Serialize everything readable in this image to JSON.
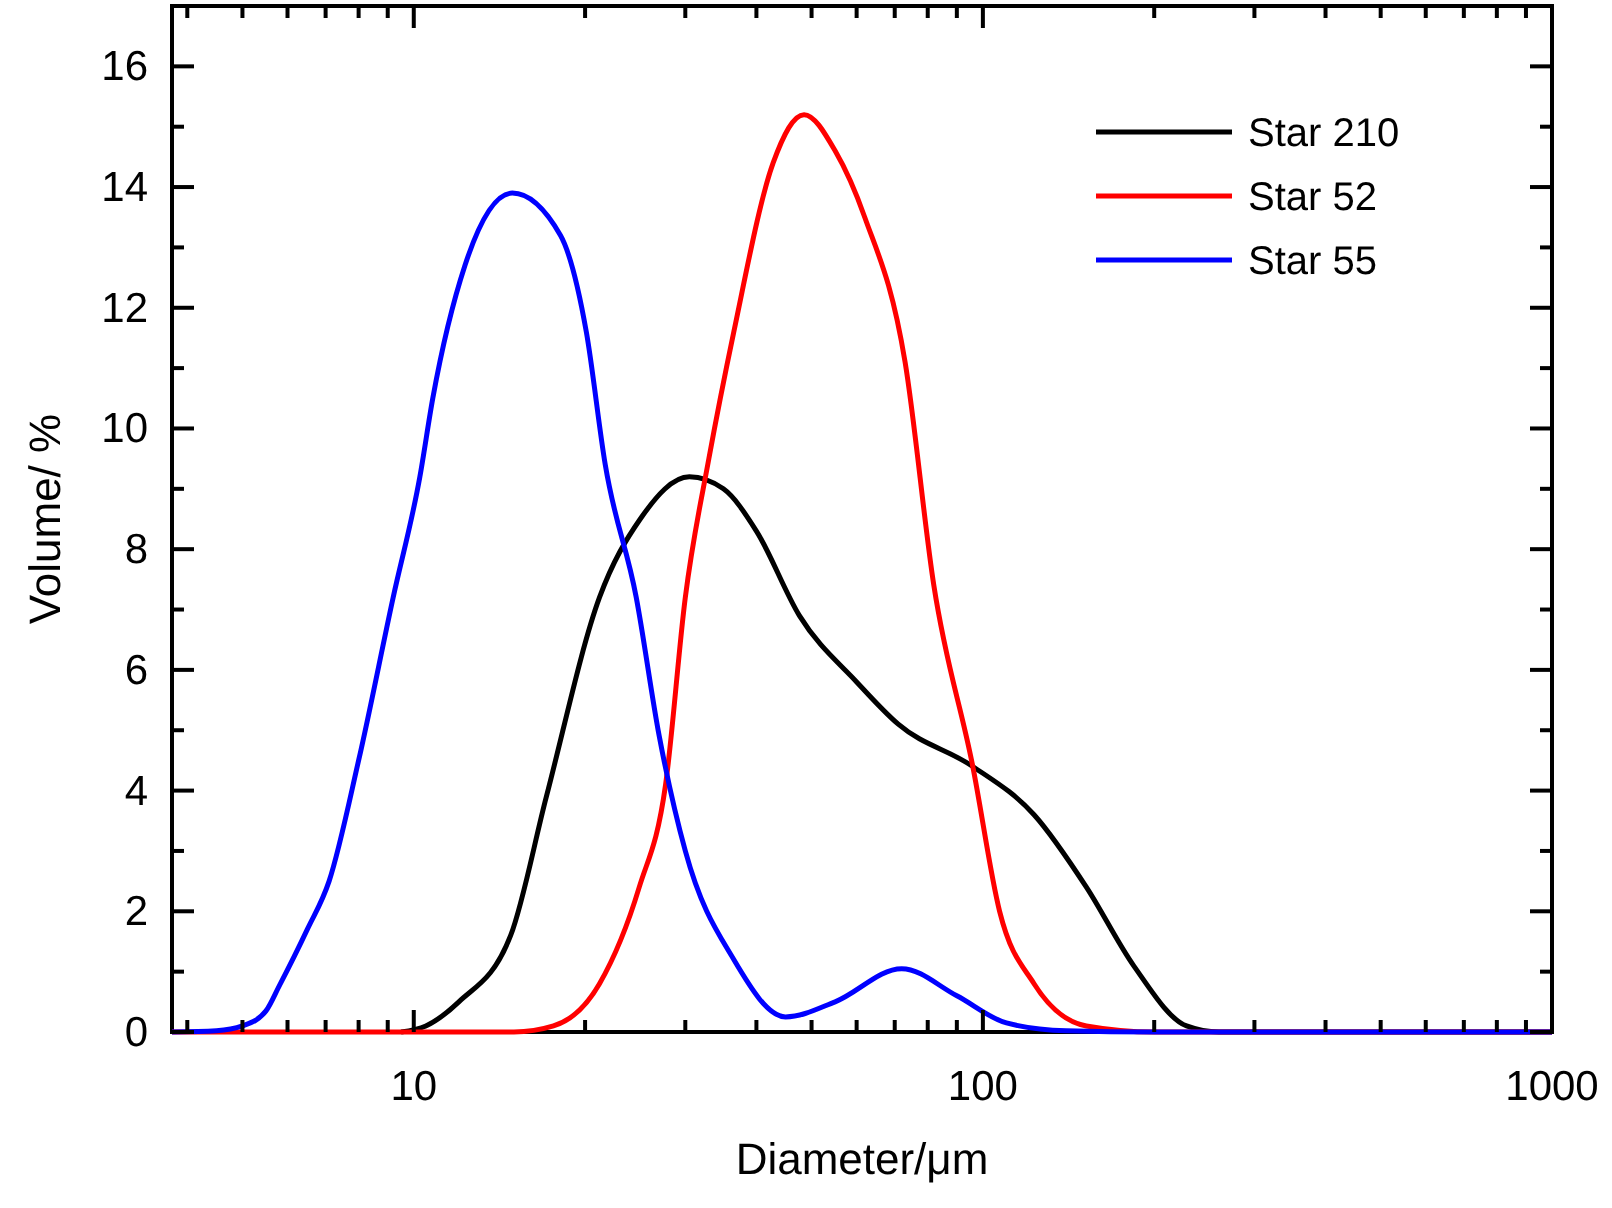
{
  "chart_data": {
    "type": "line",
    "xlabel": "Diameter/μm",
    "ylabel": "Volume/ %",
    "log": "x",
    "xlim": [
      3.76,
      1000
    ],
    "ylim": [
      0,
      17
    ],
    "xticks": [
      {
        "value": 4,
        "label": null
      },
      {
        "value": 5,
        "label": null
      },
      {
        "value": 6,
        "label": null
      },
      {
        "value": 7,
        "label": null
      },
      {
        "value": 8,
        "label": null
      },
      {
        "value": 9,
        "label": null
      },
      10,
      {
        "value": 20,
        "label": null
      },
      {
        "value": 30,
        "label": null
      },
      {
        "value": 40,
        "label": null
      },
      {
        "value": 50,
        "label": null
      },
      {
        "value": 60,
        "label": null
      },
      {
        "value": 70,
        "label": null
      },
      {
        "value": 80,
        "label": null
      },
      {
        "value": 90,
        "label": null
      },
      100,
      {
        "value": 200,
        "label": null
      },
      {
        "value": 300,
        "label": null
      },
      {
        "value": 400,
        "label": null
      },
      {
        "value": 500,
        "label": null
      },
      {
        "value": 600,
        "label": null
      },
      {
        "value": 700,
        "label": null
      },
      {
        "value": 800,
        "label": null
      },
      {
        "value": 900,
        "label": null
      },
      1000
    ],
    "yticks": [
      0,
      {
        "value": 1,
        "label": null
      },
      2,
      {
        "value": 3,
        "label": null
      },
      4,
      {
        "value": 5,
        "label": null
      },
      6,
      {
        "value": 7,
        "label": null
      },
      8,
      {
        "value": 9,
        "label": null
      },
      10,
      {
        "value": 11,
        "label": null
      },
      12,
      {
        "value": 13,
        "label": null
      },
      14,
      {
        "value": 15,
        "label": null
      },
      16
    ],
    "grid": false,
    "legend": "top right",
    "marker": "none",
    "line_style": "solid",
    "series": [
      {
        "name": "Star 210",
        "color": "#000000",
        "x": [
          9.5,
          10.5,
          12,
          14.8,
          17.1,
          21.2,
          25,
          30.5,
          35,
          40,
          47.6,
          60,
          71,
          96,
          123,
          152,
          184,
          228,
          260,
          1000
        ],
        "values": [
          0,
          0.1,
          0.5,
          1.6,
          3.9,
          7.2,
          8.5,
          9.2,
          9.0,
          8.3,
          6.9,
          5.8,
          5.1,
          4.4,
          3.6,
          2.4,
          1.1,
          0.1,
          0,
          0
        ]
      },
      {
        "name": "Star 52",
        "color": "#ff0000",
        "x": [
          3.76,
          15,
          17.6,
          21.2,
          24.9,
          27.7,
          30,
          33,
          36.5,
          42.8,
          48.5,
          55,
          62,
          73,
          82,
          96,
          107,
          123,
          152,
          200,
          1000
        ],
        "values": [
          0,
          0,
          0.1,
          0.8,
          2.4,
          4.1,
          7.2,
          9.5,
          11.6,
          14.4,
          15.2,
          14.6,
          13.5,
          11.1,
          7.4,
          4.4,
          2.0,
          0.8,
          0.1,
          0,
          0
        ]
      },
      {
        "name": "Star 55",
        "color": "#0000ff",
        "x": [
          3.76,
          4.5,
          5,
          5.5,
          5.8,
          6.5,
          7.1,
          8,
          9.2,
          10.25,
          10.8,
          12.3,
          14.9,
          18.1,
          20.1,
          21.7,
          24.6,
          27,
          30,
          36.5,
          45,
          55,
          72,
          90,
          110,
          140,
          200,
          1000
        ],
        "values": [
          0,
          0.02,
          0.1,
          0.35,
          0.76,
          1.7,
          2.5,
          4.5,
          7.2,
          9.2,
          10.5,
          12.7,
          13.9,
          13.2,
          11.6,
          9.4,
          7.2,
          4.9,
          3.0,
          1.2,
          0.25,
          0.5,
          1.05,
          0.6,
          0.15,
          0.02,
          0,
          0
        ]
      }
    ]
  }
}
